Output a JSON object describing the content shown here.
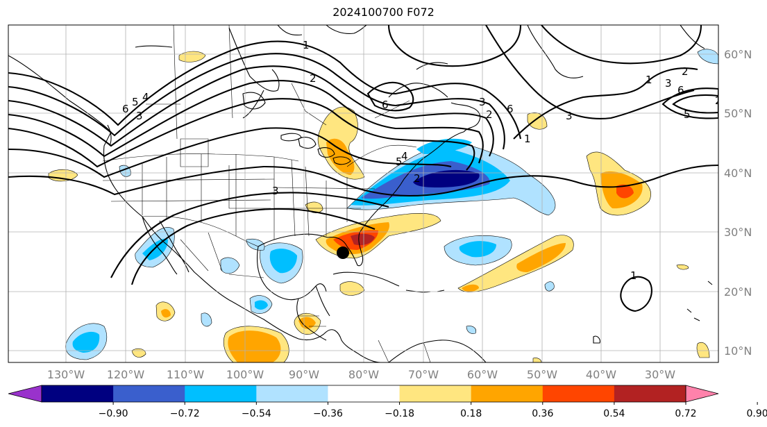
{
  "title": "2024100700 F072",
  "longitude_labels": [
    "130°W",
    "120°W",
    "110°W",
    "100°W",
    "90°W",
    "80°W",
    "70°W",
    "60°W",
    "50°W",
    "40°W",
    "30°W"
  ],
  "latitude_labels": [
    "60°N",
    "50°N",
    "40°N",
    "30°N",
    "20°N",
    "10°N"
  ],
  "colorbar": {
    "ticks": [
      "−0.90",
      "−0.72",
      "−0.54",
      "−0.36",
      "−0.18",
      "0.18",
      "0.36",
      "0.54",
      "0.72",
      "0.90"
    ],
    "colors": [
      "#9932cc",
      "#000080",
      "#3a5fcd",
      "#00bfff",
      "#b0e2ff",
      "#ffffff",
      "#ffe680",
      "#ffa500",
      "#ff4500",
      "#b22222",
      "#ff82ab"
    ]
  },
  "contour_labels": [
    "1",
    "2",
    "6",
    "5",
    "4",
    "3",
    "6",
    "5",
    "3",
    "1",
    "2",
    "6",
    "3",
    "2",
    "1",
    "3",
    "2",
    "5",
    "6",
    "4",
    "3",
    "2",
    "1"
  ],
  "storm_marker": "storm-position"
}
